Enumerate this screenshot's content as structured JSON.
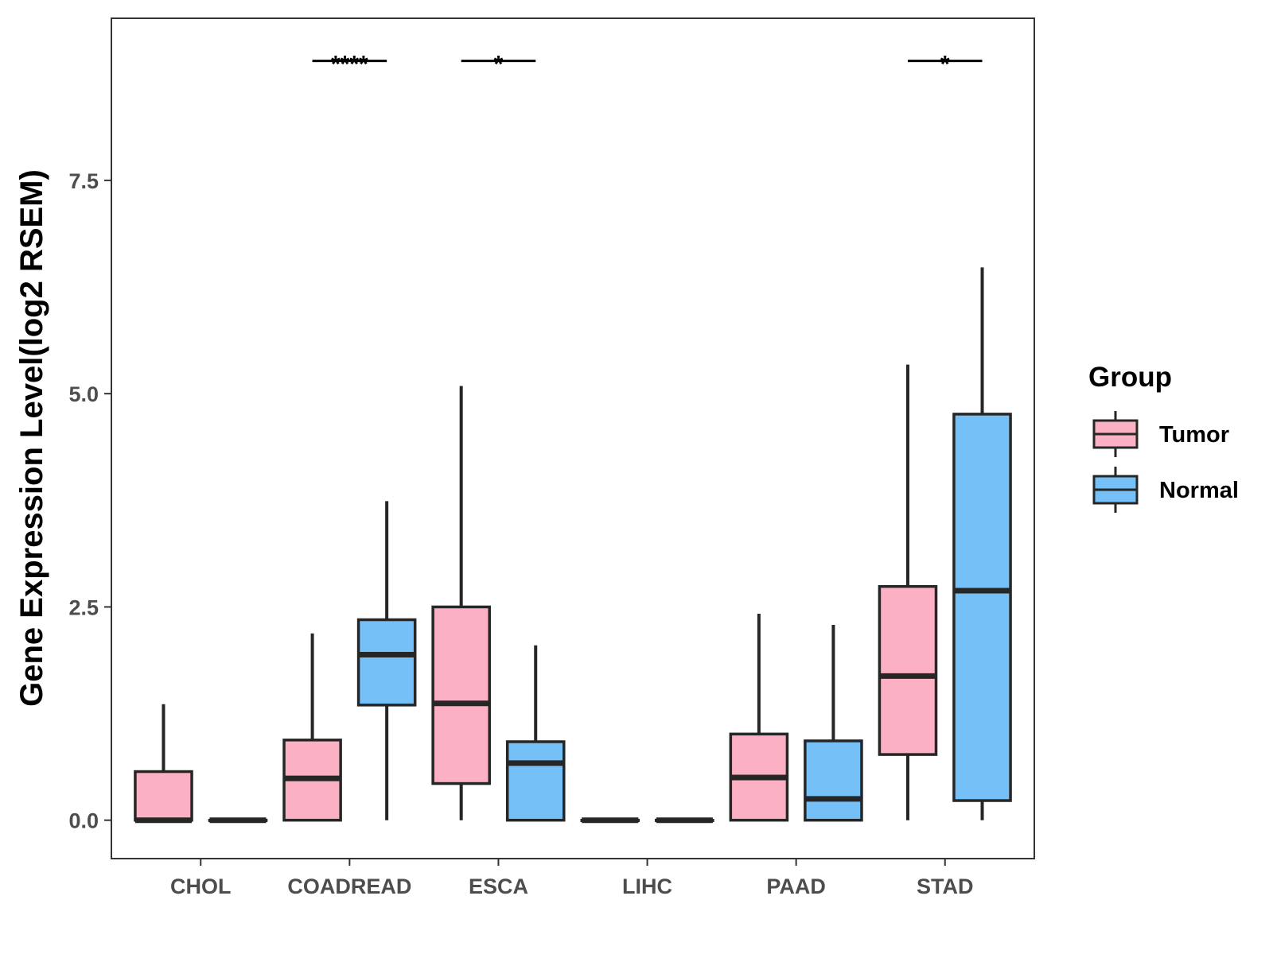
{
  "chart_data": {
    "type": "boxplot",
    "title": "",
    "xlabel": "",
    "ylabel": "Gene Expression Level(log2 RSEM)",
    "ylim": [
      -0.45,
      9.4
    ],
    "yticks": [
      0.0,
      2.5,
      5.0,
      7.5
    ],
    "ytick_labels": [
      "0.0",
      "2.5",
      "5.0",
      "7.5"
    ],
    "grid": false,
    "categories": [
      "CHOL",
      "COADREAD",
      "ESCA",
      "LIHC",
      "PAAD",
      "STAD"
    ],
    "legend": {
      "title": "Group",
      "position": "right",
      "entries": [
        {
          "name": "Tumor",
          "color": "#fbb1c3"
        },
        {
          "name": "Normal",
          "color": "#76c0f8"
        }
      ]
    },
    "series": [
      {
        "name": "Tumor",
        "color": "#fbb1c3",
        "boxes": [
          {
            "whisker_low": 0.0,
            "q1": 0.0,
            "median": 0.0,
            "q3": 0.57,
            "whisker_high": 1.36
          },
          {
            "whisker_low": 0.0,
            "q1": 0.0,
            "median": 0.49,
            "q3": 0.94,
            "whisker_high": 2.19
          },
          {
            "whisker_low": 0.0,
            "q1": 0.43,
            "median": 1.37,
            "q3": 2.5,
            "whisker_high": 5.09
          },
          {
            "whisker_low": 0.0,
            "q1": 0.0,
            "median": 0.0,
            "q3": 0.0,
            "whisker_high": 0.0
          },
          {
            "whisker_low": 0.0,
            "q1": 0.0,
            "median": 0.5,
            "q3": 1.01,
            "whisker_high": 2.42
          },
          {
            "whisker_low": 0.0,
            "q1": 0.77,
            "median": 1.69,
            "q3": 2.74,
            "whisker_high": 5.34
          }
        ]
      },
      {
        "name": "Normal",
        "color": "#76c0f8",
        "boxes": [
          {
            "whisker_low": 0.0,
            "q1": 0.0,
            "median": 0.0,
            "q3": 0.0,
            "whisker_high": 0.0
          },
          {
            "whisker_low": 0.0,
            "q1": 1.35,
            "median": 1.94,
            "q3": 2.35,
            "whisker_high": 3.74
          },
          {
            "whisker_low": 0.0,
            "q1": 0.0,
            "median": 0.67,
            "q3": 0.92,
            "whisker_high": 2.05
          },
          {
            "whisker_low": 0.0,
            "q1": 0.0,
            "median": 0.0,
            "q3": 0.0,
            "whisker_high": 0.0
          },
          {
            "whisker_low": 0.0,
            "q1": 0.0,
            "median": 0.25,
            "q3": 0.93,
            "whisker_high": 2.29
          },
          {
            "whisker_low": 0.0,
            "q1": 0.23,
            "median": 2.69,
            "q3": 4.76,
            "whisker_high": 6.48
          }
        ]
      }
    ],
    "annotations": [
      {
        "category": "COADREAD",
        "text": "****",
        "y": 8.9
      },
      {
        "category": "ESCA",
        "text": "*",
        "y": 8.9
      },
      {
        "category": "STAD",
        "text": "*",
        "y": 8.9
      }
    ]
  }
}
